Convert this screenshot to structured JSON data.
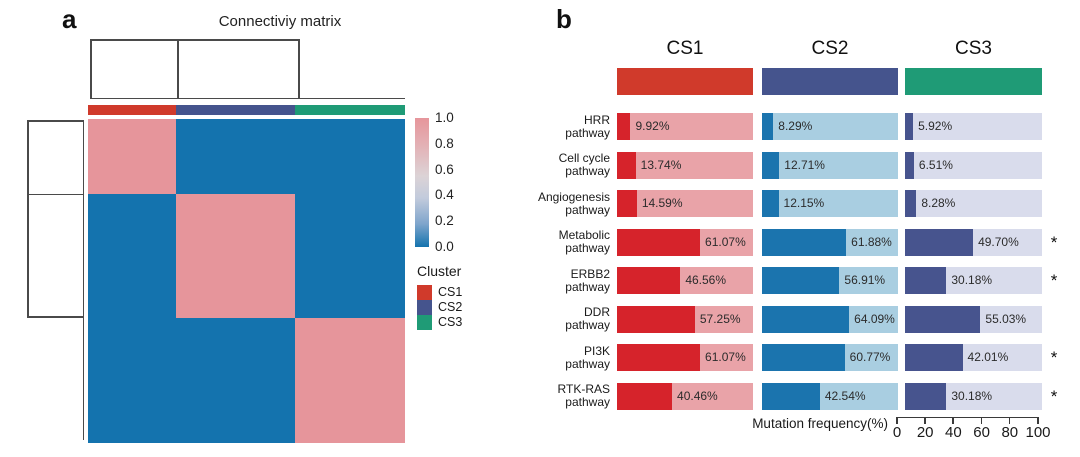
{
  "colors": {
    "cs1": "#d03a2b",
    "cs2": "#45548d",
    "cs3": "#1f9b76",
    "heatmap_high": "#e6959b",
    "heatmap_low": "#1473ae",
    "bar_fill": [
      "#d6232b",
      "#1b74ae",
      "#47548e"
    ],
    "bar_bg": [
      "#e9a3a8",
      "#a9cee1",
      "#d9dcec"
    ]
  },
  "panel_a": {
    "letter": "a",
    "title": "Connectiviy matrix",
    "colorbar_ticks": [
      "1.0",
      "0.8",
      "0.6",
      "0.4",
      "0.2",
      "0.0"
    ],
    "legend": {
      "title": "Cluster",
      "items": [
        {
          "label": "CS1",
          "color": "#d03a2b"
        },
        {
          "label": "CS2",
          "color": "#45548d"
        },
        {
          "label": "CS3",
          "color": "#1f9b76"
        }
      ]
    }
  },
  "panel_b": {
    "letter": "b",
    "columns": [
      {
        "label": "CS1",
        "color": "#d03a2b"
      },
      {
        "label": "CS2",
        "color": "#45548d"
      },
      {
        "label": "CS3",
        "color": "#1f9b76"
      }
    ],
    "significance_marker": "*",
    "rows": [
      {
        "pathway_lines": [
          "HRR",
          "pathway"
        ],
        "values": [
          9.92,
          8.29,
          5.92
        ],
        "value_labels": [
          "9.92%",
          "8.29%",
          "5.92%"
        ],
        "significant": false
      },
      {
        "pathway_lines": [
          "Cell cycle",
          "pathway"
        ],
        "values": [
          13.74,
          12.71,
          6.51
        ],
        "value_labels": [
          "13.74%",
          "12.71%",
          "6.51%"
        ],
        "significant": false
      },
      {
        "pathway_lines": [
          "Angiogenesis",
          "pathway"
        ],
        "values": [
          14.59,
          12.15,
          8.28
        ],
        "value_labels": [
          "14.59%",
          "12.15%",
          "8.28%"
        ],
        "significant": false
      },
      {
        "pathway_lines": [
          "Metabolic",
          "pathway"
        ],
        "values": [
          61.07,
          61.88,
          49.7
        ],
        "value_labels": [
          "61.07%",
          "61.88%",
          "49.70%"
        ],
        "significant": true
      },
      {
        "pathway_lines": [
          "ERBB2",
          "pathway"
        ],
        "values": [
          46.56,
          56.91,
          30.18
        ],
        "value_labels": [
          "46.56%",
          "56.91%",
          "30.18%"
        ],
        "significant": true
      },
      {
        "pathway_lines": [
          "DDR",
          "pathway"
        ],
        "values": [
          57.25,
          64.09,
          55.03
        ],
        "value_labels": [
          "57.25%",
          "64.09%",
          "55.03%"
        ],
        "significant": false
      },
      {
        "pathway_lines": [
          "PI3K",
          "pathway"
        ],
        "values": [
          61.07,
          60.77,
          42.01
        ],
        "value_labels": [
          "61.07%",
          "60.77%",
          "42.01%"
        ],
        "significant": true
      },
      {
        "pathway_lines": [
          "RTK-RAS",
          "pathway"
        ],
        "values": [
          40.46,
          42.54,
          30.18
        ],
        "value_labels": [
          "40.46%",
          "42.54%",
          "30.18%"
        ],
        "significant": true
      }
    ],
    "axis": {
      "label": "Mutation frequency(%)",
      "tick_labels": [
        "0",
        "20",
        "40",
        "60",
        "80",
        "100"
      ]
    }
  },
  "chart_data": [
    {
      "type": "heatmap",
      "title": "Connectiviy matrix",
      "row_clusters": [
        "CS1",
        "CS2",
        "CS3"
      ],
      "col_clusters": [
        "CS1",
        "CS2",
        "CS3"
      ],
      "matrix": [
        [
          0.85,
          0.0,
          0.0
        ],
        [
          0.0,
          0.85,
          0.0
        ],
        [
          0.0,
          0.0,
          0.85
        ]
      ],
      "colorbar_range": [
        0.0,
        1.0
      ],
      "colorbar_ticks": [
        1.0,
        0.8,
        0.6,
        0.4,
        0.2,
        0.0
      ],
      "legend_title": "Cluster",
      "legend_entries": [
        "CS1",
        "CS2",
        "CS3"
      ]
    },
    {
      "type": "bar",
      "orientation": "horizontal",
      "categories": [
        "HRR pathway",
        "Cell cycle pathway",
        "Angiogenesis pathway",
        "Metabolic pathway",
        "ERBB2 pathway",
        "DDR pathway",
        "PI3K pathway",
        "RTK-RAS pathway"
      ],
      "series": [
        {
          "name": "CS1",
          "values": [
            9.92,
            13.74,
            14.59,
            61.07,
            46.56,
            57.25,
            61.07,
            40.46
          ]
        },
        {
          "name": "CS2",
          "values": [
            8.29,
            12.71,
            12.15,
            61.88,
            56.91,
            64.09,
            60.77,
            42.54
          ]
        },
        {
          "name": "CS3",
          "values": [
            5.92,
            6.51,
            8.28,
            49.7,
            30.18,
            55.03,
            42.01,
            30.18
          ]
        }
      ],
      "significant_categories": [
        "Metabolic pathway",
        "ERBB2 pathway",
        "PI3K pathway",
        "RTK-RAS pathway"
      ],
      "xlabel": "Mutation frequency(%)",
      "xlim": [
        0,
        100
      ],
      "xticks": [
        0,
        20,
        40,
        60,
        80,
        100
      ]
    }
  ]
}
